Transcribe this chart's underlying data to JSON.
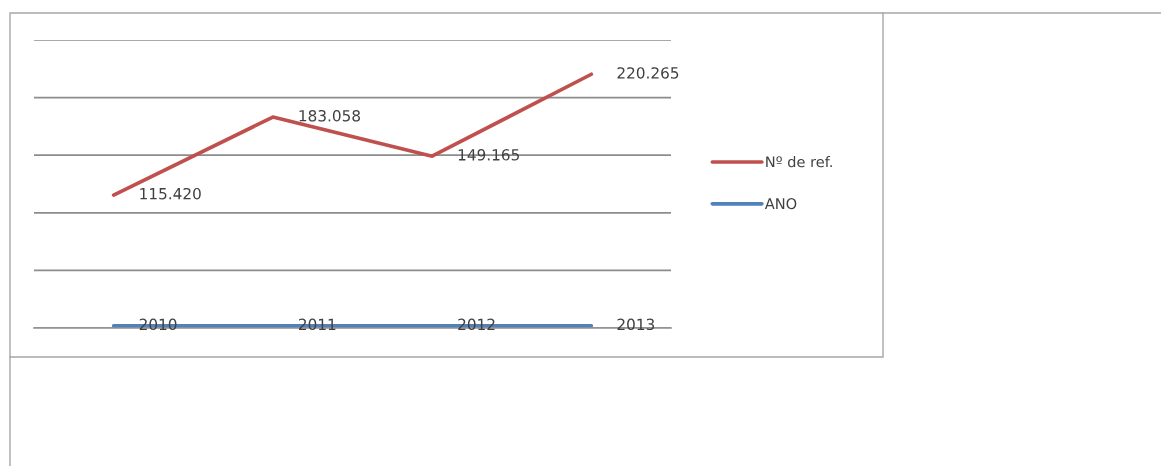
{
  "chart_data": {
    "type": "line",
    "categories": [
      null,
      null,
      null,
      null
    ],
    "series": [
      {
        "name": "Nº de ref.",
        "color": "#c0504d",
        "values": [
          115420,
          183058,
          149165,
          220265
        ],
        "value_labels": [
          "115.420",
          "183.058",
          "149.165",
          "220.265"
        ]
      },
      {
        "name": "ANO",
        "color": "#4f81bd",
        "values": [
          2010,
          2011,
          2012,
          2013
        ],
        "value_labels": [
          "2010",
          "2011",
          "2012",
          "2013"
        ]
      }
    ],
    "ylim": [
      0,
      250000
    ],
    "yticks": [
      {
        "value": 0,
        "label": null
      },
      {
        "value": 50000,
        "label": null
      },
      {
        "value": 100000,
        "label": null
      },
      {
        "value": 150000,
        "label": null
      },
      {
        "value": 200000,
        "label": null
      },
      {
        "value": 250000,
        "label": null
      }
    ],
    "grid": "y",
    "legend": "right"
  }
}
